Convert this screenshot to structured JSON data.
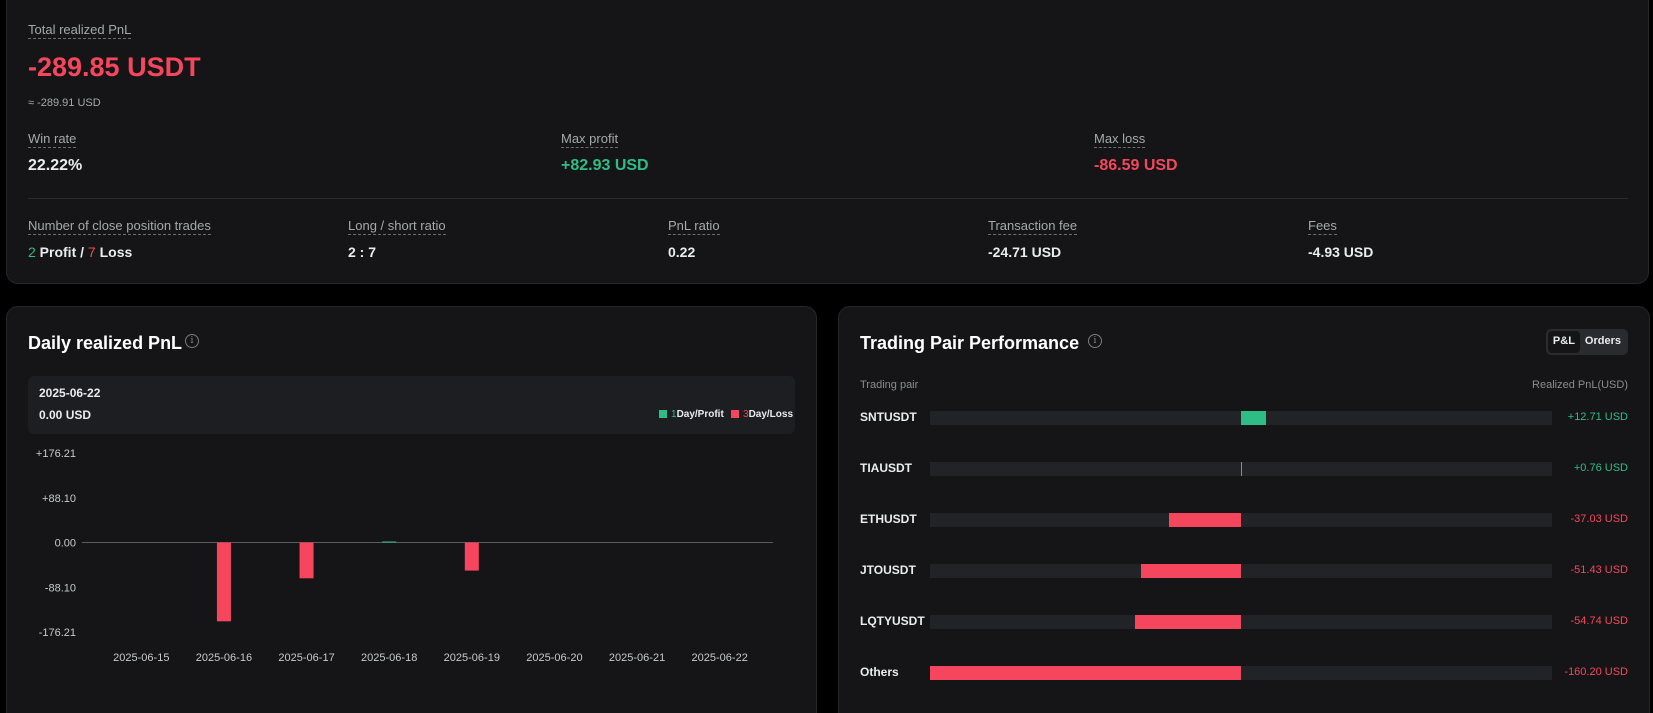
{
  "summary": {
    "total_label": "Total realized PnL",
    "total_value": "-289.85 USDT",
    "total_usd": "≈ -289.91 USD",
    "win_rate_label": "Win rate",
    "win_rate_value": "22.22%",
    "max_profit_label": "Max profit",
    "max_profit_value": "+82.93 USD",
    "max_loss_label": "Max loss",
    "max_loss_value": "-86.59 USD",
    "trades_label": "Number of close position trades",
    "trades_profit_count": "2",
    "trades_profit_text": " Profit / ",
    "trades_loss_count": "7",
    "trades_loss_text": " Loss",
    "ratio_label": "Long / short ratio",
    "ratio_value": "2 : 7",
    "pnl_ratio_label": "PnL ratio",
    "pnl_ratio_value": "0.22",
    "tx_fee_label": "Transaction fee",
    "tx_fee_value": "-24.71 USD",
    "fees_label": "Fees",
    "fees_value": "-4.93 USD"
  },
  "daily": {
    "title": "Daily realized PnL",
    "info_icon": "i",
    "tooltip_date": "2025-06-22",
    "tooltip_value": "0.00 USD",
    "legend_profit_count": "1",
    "legend_profit_text": "Day/Profit",
    "legend_loss_count": "3",
    "legend_loss_text": "Day/Loss",
    "profit_color": "#2ebd85",
    "loss_color": "#f6465d"
  },
  "chart_data": {
    "type": "bar",
    "categories": [
      "2025-06-15",
      "2025-06-16",
      "2025-06-17",
      "2025-06-18",
      "2025-06-19",
      "2025-06-20",
      "2025-06-21",
      "2025-06-22"
    ],
    "values": [
      0,
      -155.2,
      -70.5,
      0.8,
      -55.3,
      0,
      0,
      0
    ],
    "y_ticks": [
      "+176.21",
      "+88.10",
      "0.00",
      "-88.10",
      "-176.21"
    ],
    "ylim": [
      -176.21,
      176.21
    ],
    "xlabel": "",
    "ylabel": ""
  },
  "pairs": {
    "title": "Trading Pair Performance",
    "info_icon": "i",
    "toggle_pl": "P&L",
    "toggle_orders": "Orders",
    "col_pair": "Trading pair",
    "col_pnl": "Realized PnL(USD)",
    "max_abs": 160.2,
    "rows": [
      {
        "name": "SNTUSDT",
        "value": 12.71,
        "label": "+12.71 USD"
      },
      {
        "name": "TIAUSDT",
        "value": 0.76,
        "label": "+0.76 USD"
      },
      {
        "name": "ETHUSDT",
        "value": -37.03,
        "label": "-37.03 USD"
      },
      {
        "name": "JTOUSDT",
        "value": -51.43,
        "label": "-51.43 USD"
      },
      {
        "name": "LQTYUSDT",
        "value": -54.74,
        "label": "-54.74 USD"
      },
      {
        "name": "Others",
        "value": -160.2,
        "label": "-160.20 USD"
      }
    ]
  }
}
